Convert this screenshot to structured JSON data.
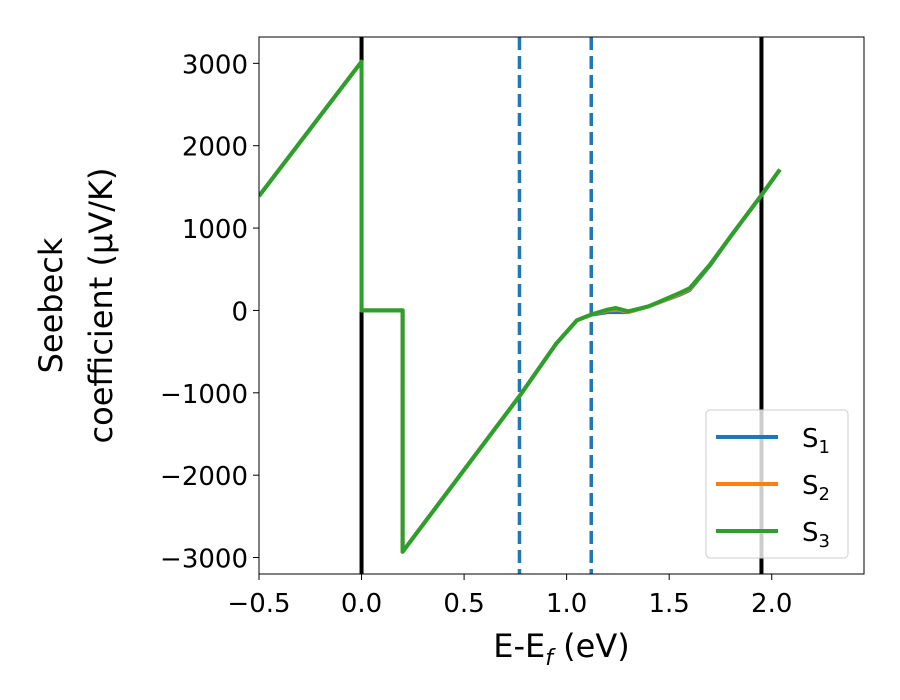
{
  "chart_data": {
    "type": "line",
    "title": "",
    "xlabel": "E-E_f (eV)",
    "xlabel_parts": {
      "main": "E-E",
      "sub": "f",
      "rest": " (eV)"
    },
    "ylabel_lines": [
      "Seebeck",
      "coefficient  (μV/K)"
    ],
    "xlim": [
      -0.5,
      2.45
    ],
    "ylim": [
      -3200,
      3320
    ],
    "xticks": [
      -0.5,
      0.0,
      0.5,
      1.0,
      1.5,
      2.0
    ],
    "xtick_labels": [
      "−0.5",
      "0.0",
      "0.5",
      "1.0",
      "1.5",
      "2.0"
    ],
    "yticks": [
      -3000,
      -2000,
      -1000,
      0,
      1000,
      2000,
      3000
    ],
    "ytick_labels": [
      "−3000",
      "−2000",
      "−1000",
      "0",
      "1000",
      "2000",
      "3000"
    ],
    "grid": false,
    "legend_position": "bottom-right",
    "vertical_lines": [
      {
        "x": 0.0,
        "style": "solid",
        "color": "#000000"
      },
      {
        "x": 0.77,
        "style": "dashed",
        "color": "#1f77b4"
      },
      {
        "x": 1.12,
        "style": "dashed",
        "color": "#1f77b4"
      },
      {
        "x": 1.95,
        "style": "solid",
        "color": "#000000"
      }
    ],
    "series": [
      {
        "name": "S_1",
        "label_main": "S",
        "label_sub": "1",
        "color": "#1f77b4",
        "points": [
          [
            -0.5,
            1390
          ],
          [
            0.0,
            3020
          ],
          [
            0.0,
            0
          ],
          [
            0.2,
            0
          ],
          [
            0.2,
            -2930
          ],
          [
            0.77,
            -1040
          ],
          [
            0.95,
            -400
          ],
          [
            1.05,
            -120
          ],
          [
            1.12,
            -50
          ],
          [
            1.2,
            -20
          ],
          [
            1.3,
            -20
          ],
          [
            1.4,
            50
          ],
          [
            1.55,
            190
          ],
          [
            1.6,
            250
          ],
          [
            1.7,
            550
          ],
          [
            1.8,
            900
          ],
          [
            1.95,
            1400
          ],
          [
            2.04,
            1710
          ]
        ]
      },
      {
        "name": "S_2",
        "label_main": "S",
        "label_sub": "2",
        "color": "#ff7f0e",
        "points": [
          [
            -0.5,
            1390
          ],
          [
            0.0,
            3020
          ],
          [
            0.0,
            0
          ],
          [
            0.2,
            0
          ],
          [
            0.2,
            -2930
          ],
          [
            0.77,
            -1040
          ],
          [
            0.95,
            -400
          ],
          [
            1.05,
            -120
          ],
          [
            1.12,
            -50
          ],
          [
            1.2,
            0
          ],
          [
            1.25,
            10
          ],
          [
            1.3,
            -20
          ],
          [
            1.4,
            50
          ],
          [
            1.55,
            200
          ],
          [
            1.6,
            260
          ],
          [
            1.7,
            560
          ],
          [
            1.8,
            900
          ],
          [
            1.95,
            1400
          ],
          [
            2.04,
            1710
          ]
        ]
      },
      {
        "name": "S_3",
        "label_main": "S",
        "label_sub": "3",
        "color": "#2ca02c",
        "points": [
          [
            -0.5,
            1390
          ],
          [
            0.0,
            3020
          ],
          [
            0.0,
            0
          ],
          [
            0.2,
            0
          ],
          [
            0.2,
            -2930
          ],
          [
            0.77,
            -1040
          ],
          [
            0.95,
            -400
          ],
          [
            1.05,
            -120
          ],
          [
            1.12,
            -50
          ],
          [
            1.2,
            10
          ],
          [
            1.24,
            30
          ],
          [
            1.3,
            -10
          ],
          [
            1.4,
            50
          ],
          [
            1.55,
            210
          ],
          [
            1.6,
            270
          ],
          [
            1.7,
            560
          ],
          [
            1.8,
            900
          ],
          [
            1.95,
            1400
          ],
          [
            2.04,
            1710
          ]
        ]
      }
    ]
  }
}
